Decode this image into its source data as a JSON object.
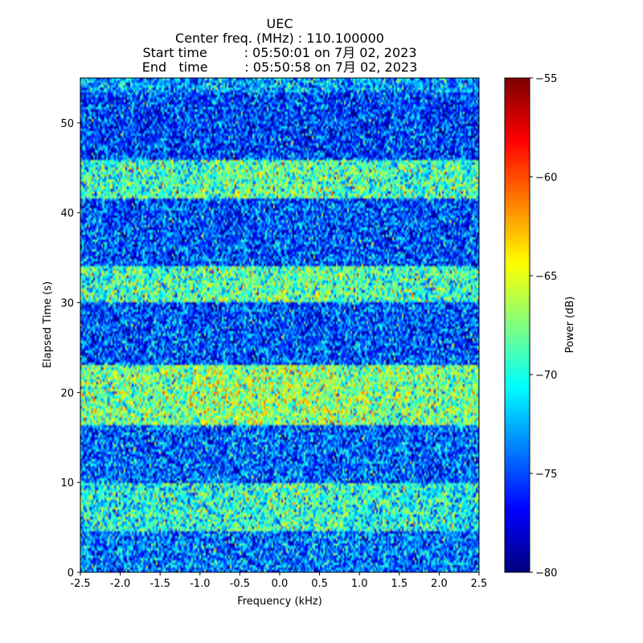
{
  "chart_data": {
    "type": "heatmap",
    "title_lines": [
      "UEC",
      "Center freq. (MHz) : 110.100000",
      "Start time         : 05:50:01 on 7月 02, 2023",
      "End   time         : 05:50:58 on 7月 02, 2023"
    ],
    "xlabel": "Frequency (kHz)",
    "ylabel": "Elapsed Time (s)",
    "xlim": [
      -2.5,
      2.5
    ],
    "ylim": [
      0,
      55
    ],
    "x_ticks": [
      -2.5,
      -2.0,
      -1.5,
      -1.0,
      -0.5,
      0.0,
      0.5,
      1.0,
      1.5,
      2.0,
      2.5
    ],
    "x_tick_labels": [
      "-2.5",
      "-2.0",
      "-1.5",
      "-1.0",
      "-0.5",
      "0.0",
      "0.5",
      "1.0",
      "1.5",
      "2.0",
      "2.5"
    ],
    "y_ticks": [
      0,
      10,
      20,
      30,
      40,
      50
    ],
    "y_tick_labels": [
      "0",
      "10",
      "20",
      "30",
      "40",
      "50"
    ],
    "colorbar": {
      "label": "Power (dB)",
      "range": [
        -80,
        -55
      ],
      "ticks": [
        -80,
        -75,
        -70,
        -65,
        -60,
        -55
      ],
      "tick_labels": [
        "−80",
        "−75",
        "−70",
        "−65",
        "−60",
        "−55"
      ],
      "colormap": "jet"
    },
    "time_bands_s": [
      {
        "start": 0,
        "end": 4.5,
        "mean_db": -74
      },
      {
        "start": 4.5,
        "end": 10,
        "mean_db": -70.5
      },
      {
        "start": 10,
        "end": 16.5,
        "mean_db": -74.5
      },
      {
        "start": 16.5,
        "end": 23,
        "mean_db": -68
      },
      {
        "start": 23,
        "end": 30,
        "mean_db": -75
      },
      {
        "start": 30,
        "end": 34,
        "mean_db": -69.5
      },
      {
        "start": 34,
        "end": 41.5,
        "mean_db": -75
      },
      {
        "start": 41.5,
        "end": 46,
        "mean_db": -69.5
      },
      {
        "start": 46,
        "end": 53.5,
        "mean_db": -75.5
      },
      {
        "start": 53.5,
        "end": 55,
        "mean_db": -73
      }
    ]
  }
}
